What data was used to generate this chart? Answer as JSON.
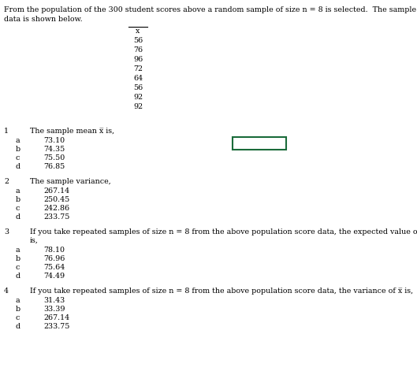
{
  "bg_color": "#ffffff",
  "text_color": "#000000",
  "box_color": "#1a6b3a",
  "intro_line1": "From the population of the 300 student scores above a random sample of size n = 8 is selected.  The sample",
  "intro_line2": "data is shown below.",
  "table_values": [
    "56",
    "76",
    "96",
    "72",
    "64",
    "56",
    "92",
    "92"
  ],
  "q1_label": "1",
  "q1_text": "The sample mean x̅ is,",
  "q1_options": [
    [
      "a",
      "73.10"
    ],
    [
      "b",
      "74.35"
    ],
    [
      "c",
      "75.50"
    ],
    [
      "d",
      "76.85"
    ]
  ],
  "q2_label": "2",
  "q2_text": "The sample variance,",
  "q2_options": [
    [
      "a",
      "267.14"
    ],
    [
      "b",
      "250.45"
    ],
    [
      "c",
      "242.86"
    ],
    [
      "d",
      "233.75"
    ]
  ],
  "q3_label": "3",
  "q3_line1": "If you take repeated samples of size n = 8 from the above population score data, the expected value of x̅",
  "q3_line2": "is,",
  "q3_options": [
    [
      "a",
      "78.10"
    ],
    [
      "b",
      "76.96"
    ],
    [
      "c",
      "75.64"
    ],
    [
      "d",
      "74.49"
    ]
  ],
  "q4_label": "4",
  "q4_text": "If you take repeated samples of size n = 8 from the above population score data, the variance of x̅ is,",
  "q4_options": [
    [
      "a",
      "31.43"
    ],
    [
      "b",
      "33.39"
    ],
    [
      "c",
      "267.14"
    ],
    [
      "d",
      "233.75"
    ]
  ],
  "font_size": 6.8
}
